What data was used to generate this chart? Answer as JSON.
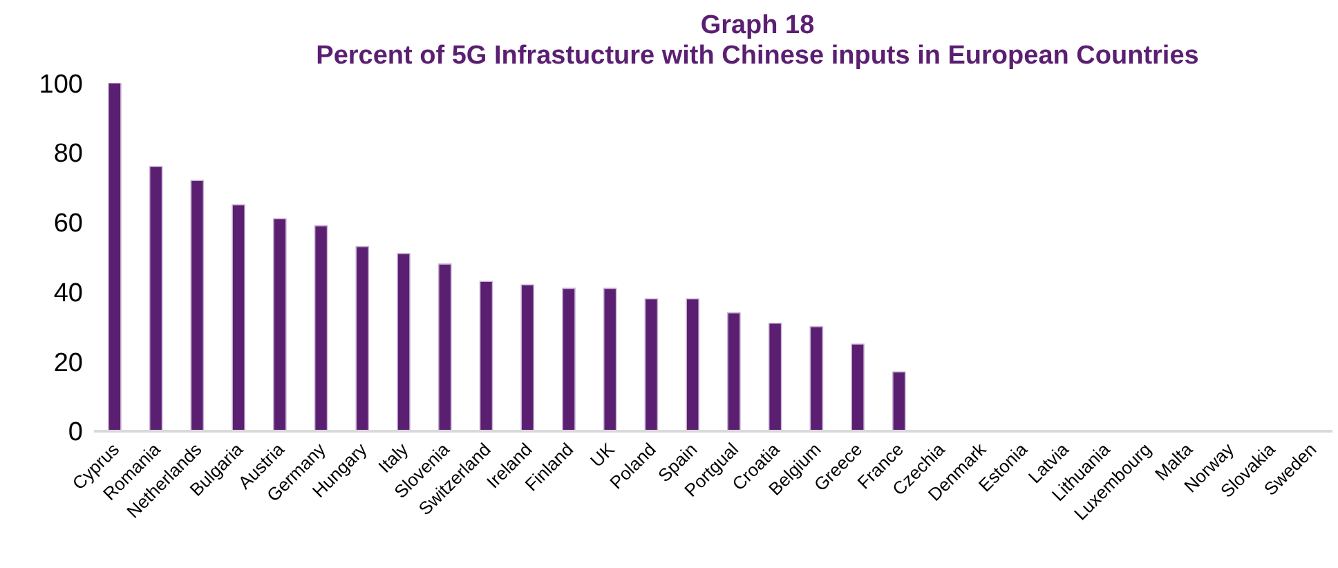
{
  "chart_data": {
    "type": "bar",
    "title": "Graph 18",
    "subtitle": "Percent of 5G Infrastucture with Chinese inputs in European Countries",
    "categories": [
      "Cyprus",
      "Romania",
      "Netherlands",
      "Bulgaria",
      "Austria",
      "Germany",
      "Hungary",
      "Italy",
      "Slovenia",
      "Switzerland",
      "Ireland",
      "Finland",
      "UK",
      "Poland",
      "Spain",
      "Portgual",
      "Croatia",
      "Belgium",
      "Greece",
      "France",
      "Czechia",
      "Denmark",
      "Estonia",
      "Latvia",
      "Lithuania",
      "Luxembourg",
      "Malta",
      "Norway",
      "Slovakia",
      "Sweden"
    ],
    "values": [
      100,
      76,
      72,
      65,
      61,
      59,
      53,
      51,
      48,
      43,
      42,
      41,
      41,
      38,
      38,
      34,
      31,
      30,
      25,
      17,
      0,
      0,
      0,
      0,
      0,
      0,
      0,
      0,
      0,
      0
    ],
    "color": "#5b1f72",
    "ylim": [
      0,
      100
    ],
    "yticks": [
      0,
      20,
      40,
      60,
      80,
      100
    ],
    "grid": false
  }
}
